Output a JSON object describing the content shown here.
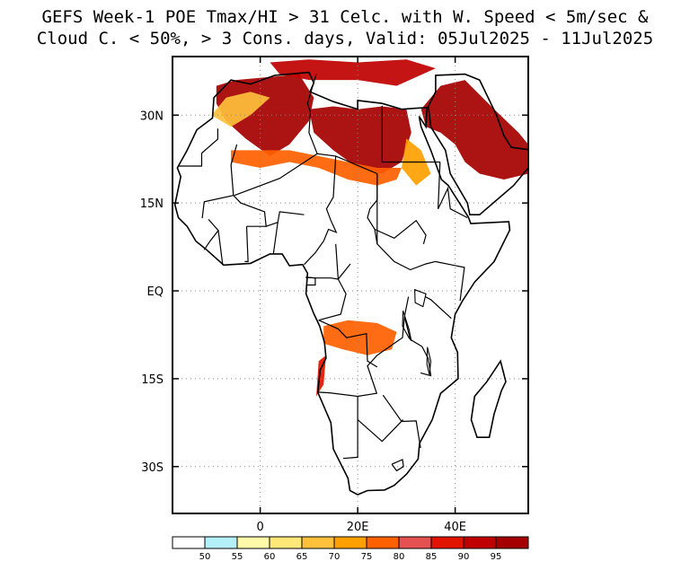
{
  "title": {
    "line1": "GEFS Week-1 POE Tmax/HI > 31 Celc. with W. Speed < 5m/sec &",
    "line2": "Cloud C. < 50%, > 3 Cons. days, Valid: 05Jul2025 - 11Jul2025"
  },
  "axes": {
    "y_ticks": [
      {
        "label": "30N",
        "lat": 30
      },
      {
        "label": "15N",
        "lat": 15
      },
      {
        "label": "EQ",
        "lat": 0
      },
      {
        "label": "15S",
        "lat": -15
      },
      {
        "label": "30S",
        "lat": -30
      }
    ],
    "x_ticks": [
      {
        "label": "0",
        "lon": 0
      },
      {
        "label": "20E",
        "lon": 20
      },
      {
        "label": "40E",
        "lon": 40
      }
    ],
    "lon_range": [
      -18,
      55
    ],
    "lat_range": [
      -38,
      40
    ]
  },
  "colorbar": {
    "colors": [
      "#ffffff",
      "#b4f0fa",
      "#fffaaa",
      "#ffe878",
      "#ffc03c",
      "#ffa000",
      "#ff6000",
      "#e55050",
      "#e11400",
      "#c00000",
      "#a50000"
    ],
    "labels": [
      "50",
      "55",
      "60",
      "65",
      "70",
      "75",
      "80",
      "85",
      "90",
      "95"
    ]
  },
  "map_regions": [
    {
      "name": "sahara-west",
      "color": "#a50000",
      "pts": [
        [
          -9,
          35
        ],
        [
          -5,
          36
        ],
        [
          2,
          36.5
        ],
        [
          8,
          37
        ],
        [
          11,
          33
        ],
        [
          10,
          29
        ],
        [
          6,
          25
        ],
        [
          2,
          23
        ],
        [
          -3,
          26
        ],
        [
          -7,
          29
        ],
        [
          -9,
          32
        ]
      ]
    },
    {
      "name": "sahara-central",
      "color": "#a50000",
      "pts": [
        [
          10,
          31
        ],
        [
          15,
          31.5
        ],
        [
          20,
          31
        ],
        [
          25,
          31.5
        ],
        [
          30,
          31
        ],
        [
          31,
          27
        ],
        [
          29,
          22
        ],
        [
          25,
          20
        ],
        [
          20,
          21
        ],
        [
          15,
          24
        ],
        [
          11,
          27
        ]
      ]
    },
    {
      "name": "arabia",
      "color": "#a50000",
      "pts": [
        [
          33,
          31
        ],
        [
          37,
          35
        ],
        [
          42,
          36
        ],
        [
          48,
          31
        ],
        [
          53,
          27
        ],
        [
          55,
          25
        ],
        [
          55,
          20
        ],
        [
          50,
          19
        ],
        [
          45,
          20
        ],
        [
          42,
          22
        ],
        [
          40,
          25
        ],
        [
          37,
          27
        ],
        [
          34,
          28
        ]
      ]
    },
    {
      "name": "sahel-band",
      "color": "#ff6000",
      "pts": [
        [
          -6,
          22
        ],
        [
          0,
          21
        ],
        [
          6,
          22
        ],
        [
          12,
          21
        ],
        [
          18,
          19
        ],
        [
          24,
          18
        ],
        [
          28,
          19
        ],
        [
          29,
          21
        ],
        [
          24,
          21
        ],
        [
          18,
          22
        ],
        [
          12,
          23
        ],
        [
          6,
          24
        ],
        [
          0,
          24
        ],
        [
          -6,
          24
        ]
      ]
    },
    {
      "name": "maghreb-coast",
      "color": "#ffc03c",
      "pts": [
        [
          -10,
          30
        ],
        [
          -6,
          28
        ],
        [
          -2,
          30
        ],
        [
          2,
          33
        ],
        [
          -2,
          34
        ],
        [
          -7,
          33
        ]
      ]
    },
    {
      "name": "nile-valley",
      "color": "#ffa000",
      "pts": [
        [
          30,
          26
        ],
        [
          33,
          24
        ],
        [
          35,
          20
        ],
        [
          32,
          18
        ],
        [
          29,
          21
        ]
      ]
    },
    {
      "name": "angola-zambia",
      "color": "#ff6000",
      "pts": [
        [
          13,
          -6
        ],
        [
          18,
          -5
        ],
        [
          24,
          -5.5
        ],
        [
          28,
          -7
        ],
        [
          27,
          -10
        ],
        [
          22,
          -11
        ],
        [
          17,
          -10
        ],
        [
          13,
          -9
        ]
      ]
    },
    {
      "name": "angola-coast",
      "color": "#e11400",
      "pts": [
        [
          12,
          -12
        ],
        [
          13.5,
          -11
        ],
        [
          13,
          -16
        ],
        [
          11.5,
          -18
        ]
      ]
    },
    {
      "name": "north-top-band",
      "color": "#c00000",
      "pts": [
        [
          2,
          39
        ],
        [
          10,
          39.5
        ],
        [
          20,
          39
        ],
        [
          30,
          39.5
        ],
        [
          36,
          38
        ],
        [
          28,
          35
        ],
        [
          20,
          36
        ],
        [
          10,
          36
        ],
        [
          4,
          37
        ]
      ]
    }
  ],
  "coastline": [
    [
      -6,
      36
    ],
    [
      -2,
      35.3
    ],
    [
      3,
      36.8
    ],
    [
      10,
      37.3
    ],
    [
      11,
      35.5
    ],
    [
      10.2,
      34
    ],
    [
      15,
      32.3
    ],
    [
      20,
      31
    ],
    [
      20,
      32.5
    ],
    [
      25,
      32
    ],
    [
      29,
      31
    ],
    [
      32.3,
      31.2
    ],
    [
      34.2,
      31.3
    ],
    [
      34,
      28
    ],
    [
      32.6,
      29.8
    ],
    [
      33,
      28
    ],
    [
      35,
      24
    ],
    [
      37.2,
      19
    ],
    [
      38.6,
      18
    ],
    [
      42.7,
      12.6
    ],
    [
      43.2,
      11.5
    ],
    [
      51,
      11.8
    ],
    [
      51.2,
      10.4
    ],
    [
      48,
      5
    ],
    [
      44,
      1.5
    ],
    [
      41.5,
      -1.7
    ],
    [
      40,
      -4
    ],
    [
      39.2,
      -8
    ],
    [
      40.5,
      -10.5
    ],
    [
      40.6,
      -15
    ],
    [
      37,
      -17.5
    ],
    [
      35.3,
      -22
    ],
    [
      32.7,
      -26
    ],
    [
      32.4,
      -28.7
    ],
    [
      30,
      -31.3
    ],
    [
      27.5,
      -33.2
    ],
    [
      25.5,
      -34
    ],
    [
      22,
      -34.1
    ],
    [
      20,
      -34.8
    ],
    [
      18.4,
      -34.1
    ],
    [
      18,
      -32
    ],
    [
      15,
      -27
    ],
    [
      14.5,
      -22.5
    ],
    [
      11.8,
      -17.3
    ],
    [
      12.3,
      -13.5
    ],
    [
      13.5,
      -11.5
    ],
    [
      13.2,
      -8.8
    ],
    [
      12.2,
      -6
    ],
    [
      11,
      -3.9
    ],
    [
      9.4,
      -0.5
    ],
    [
      9.7,
      3
    ],
    [
      8.7,
      4.5
    ],
    [
      6,
      4.3
    ],
    [
      4.5,
      6.3
    ],
    [
      2,
      6.3
    ],
    [
      -2,
      4.7
    ],
    [
      -7.5,
      4.4
    ],
    [
      -11,
      7
    ],
    [
      -13.2,
      8.5
    ],
    [
      -15,
      11
    ],
    [
      -16.8,
      12.5
    ],
    [
      -17.5,
      14.7
    ],
    [
      -16.3,
      19.5
    ],
    [
      -17,
      21
    ],
    [
      -15,
      24
    ],
    [
      -13,
      27.5
    ],
    [
      -9.8,
      29.5
    ],
    [
      -9.5,
      33
    ],
    [
      -6,
      36
    ]
  ],
  "madagascar": [
    [
      49.3,
      -12
    ],
    [
      50.4,
      -15.5
    ],
    [
      49.5,
      -17
    ],
    [
      48,
      -21
    ],
    [
      47,
      -25
    ],
    [
      44.5,
      -25
    ],
    [
      43.3,
      -22
    ],
    [
      44,
      -18
    ],
    [
      46.5,
      -15.5
    ]
  ],
  "peninsula": [
    [
      34.5,
      31.5
    ],
    [
      36,
      34
    ],
    [
      36,
      36.8
    ],
    [
      42,
      37
    ],
    [
      45,
      36
    ],
    [
      48.5,
      30
    ],
    [
      50,
      26.5
    ],
    [
      51.5,
      24.5
    ],
    [
      56,
      24
    ],
    [
      55,
      21
    ],
    [
      52,
      18
    ],
    [
      45,
      13
    ],
    [
      43,
      13
    ],
    [
      42.5,
      15
    ],
    [
      39,
      20
    ],
    [
      38,
      24
    ],
    [
      35,
      28
    ]
  ],
  "borders": [
    [
      [
        -8.7,
        27.7
      ],
      [
        -8.7,
        25.9
      ],
      [
        -12,
        23.5
      ],
      [
        -12,
        21.3
      ],
      [
        -16.8,
        21.3
      ]
    ],
    [
      [
        -4.8,
        25
      ],
      [
        -6,
        21.5
      ],
      [
        -5.5,
        16.3
      ],
      [
        -11.5,
        15.2
      ],
      [
        -11.9,
        12.4
      ]
    ],
    [
      [
        -5.3,
        16.3
      ],
      [
        4,
        19.2
      ],
      [
        11.7,
        23.4
      ],
      [
        15.5,
        23
      ],
      [
        24,
        20
      ],
      [
        24,
        15.5
      ]
    ],
    [
      [
        11.5,
        37
      ],
      [
        9.7,
        32
      ],
      [
        10.3,
        30.5
      ],
      [
        10,
        27
      ],
      [
        11.7,
        23.4
      ]
    ],
    [
      [
        25,
        31.6
      ],
      [
        25,
        22
      ],
      [
        36.9,
        22
      ]
    ],
    [
      [
        24,
        20
      ],
      [
        24,
        8
      ],
      [
        27.5,
        5
      ],
      [
        30.8,
        3.6
      ],
      [
        34,
        4.6
      ],
      [
        35.9,
        5
      ]
    ],
    [
      [
        15.5,
        23
      ],
      [
        15,
        16
      ],
      [
        13.6,
        14
      ],
      [
        14.5,
        12
      ],
      [
        15.6,
        10
      ],
      [
        14,
        10.5
      ],
      [
        13,
        8.5
      ],
      [
        11.3,
        6.5
      ],
      [
        9,
        4.5
      ]
    ],
    [
      [
        24,
        15.5
      ],
      [
        22.5,
        14
      ],
      [
        22,
        12.5
      ],
      [
        23.5,
        10.5
      ],
      [
        24,
        8
      ]
    ],
    [
      [
        36.9,
        22
      ],
      [
        36.5,
        14
      ],
      [
        38.5,
        17.5
      ],
      [
        39,
        14
      ],
      [
        42.5,
        12.5
      ]
    ],
    [
      [
        35.9,
        5
      ],
      [
        41.9,
        4
      ],
      [
        41,
        -1.7
      ]
    ],
    [
      [
        33.9,
        -1
      ],
      [
        35,
        -1.5
      ],
      [
        39.2,
        -4.7
      ]
    ],
    [
      [
        30.4,
        -1
      ],
      [
        29.6,
        -4.4
      ],
      [
        30.8,
        -8.3
      ],
      [
        33.2,
        -9.5
      ],
      [
        34.5,
        -11.6
      ],
      [
        35,
        -14.5
      ],
      [
        32.9,
        -14
      ]
    ],
    [
      [
        29.6,
        -4.4
      ],
      [
        29.2,
        -8
      ],
      [
        28.5,
        -8.4
      ],
      [
        24,
        -11
      ],
      [
        22,
        -12.8
      ],
      [
        23.9,
        -17.5
      ],
      [
        20,
        -18
      ]
    ],
    [
      [
        12,
        -5
      ],
      [
        16,
        -6.5
      ],
      [
        17.7,
        -8
      ],
      [
        21.8,
        -7.3
      ],
      [
        22,
        -12
      ],
      [
        24,
        -13
      ]
    ],
    [
      [
        11.8,
        -17.3
      ],
      [
        14.2,
        -17.4
      ],
      [
        20,
        -18
      ],
      [
        20,
        -22
      ],
      [
        20,
        -24.7
      ],
      [
        20,
        -28.4
      ],
      [
        17,
        -28.6
      ]
    ],
    [
      [
        25.2,
        -17.8
      ],
      [
        29,
        -22.3
      ],
      [
        32,
        -22.2
      ],
      [
        32.9,
        -26.8
      ]
    ],
    [
      [
        27,
        -29.6
      ],
      [
        29.2,
        -28.8
      ],
      [
        29.4,
        -30
      ],
      [
        28,
        -30.7
      ],
      [
        27,
        -29.6
      ]
    ],
    [
      [
        20,
        -22
      ],
      [
        25,
        -25.7
      ],
      [
        27,
        -24
      ],
      [
        29.3,
        -22
      ]
    ],
    [
      [
        3.6,
        11.7
      ],
      [
        2.7,
        6.3
      ]
    ],
    [
      [
        1.2,
        11
      ],
      [
        0,
        11
      ],
      [
        -2.8,
        11
      ]
    ],
    [
      [
        -2.8,
        11
      ],
      [
        -2.5,
        5
      ],
      [
        -3.2,
        5
      ]
    ],
    [
      [
        -8.6,
        10.3
      ],
      [
        -7.7,
        4.4
      ]
    ],
    [
      [
        -11.5,
        7
      ],
      [
        -10.3,
        8.5
      ],
      [
        -8.6,
        10.3
      ],
      [
        -10.6,
        12.2
      ]
    ],
    [
      [
        9,
        13
      ],
      [
        4,
        13.5
      ],
      [
        3.6,
        11.7
      ],
      [
        1.2,
        11
      ],
      [
        0.9,
        13.5
      ],
      [
        -4,
        15
      ],
      [
        -5.5,
        16.3
      ]
    ],
    [
      [
        15.5,
        8
      ],
      [
        16,
        2
      ],
      [
        14.5,
        2.2
      ],
      [
        11.3,
        2.2
      ],
      [
        9.8,
        2.3
      ]
    ],
    [
      [
        18.5,
        4.6
      ],
      [
        16,
        2
      ],
      [
        17.6,
        -0.5
      ],
      [
        16.5,
        -4
      ],
      [
        12,
        -5
      ]
    ],
    [
      [
        23.5,
        10.5
      ],
      [
        27.5,
        9
      ],
      [
        32,
        12
      ],
      [
        34,
        9.5
      ],
      [
        33.5,
        8
      ]
    ],
    [
      [
        9.3,
        2.3
      ],
      [
        11.3,
        2.2
      ],
      [
        11.3,
        1
      ],
      [
        9.5,
        1
      ]
    ]
  ],
  "lakes": [
    [
      [
        31.7,
        0.2
      ],
      [
        34,
        -0.5
      ],
      [
        33.4,
        -2.7
      ],
      [
        31.8,
        -2
      ]
    ],
    [
      [
        29.3,
        -3.4
      ],
      [
        30.5,
        -6.5
      ],
      [
        31,
        -8.5
      ],
      [
        30.5,
        -8
      ],
      [
        29.2,
        -6
      ]
    ],
    [
      [
        34.3,
        -9.6
      ],
      [
        35,
        -12
      ],
      [
        34.7,
        -14.3
      ],
      [
        34.2,
        -12.5
      ]
    ]
  ]
}
